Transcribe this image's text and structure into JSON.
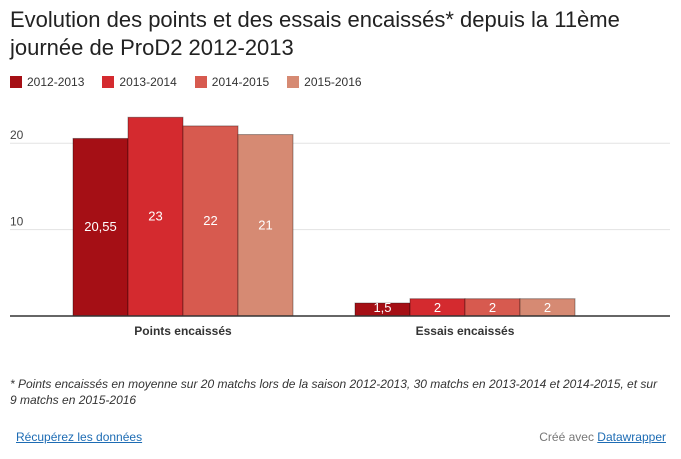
{
  "title": "Evolution des points et des essais encaissés* depuis la 11ème journée de ProD2 2012-2013",
  "footnote": "* Points encaissés en moyenne sur 20 matchs lors de la saison 2012-2013, 30 matchs en 2013-2014 et 2014-2015, et sur 9 matchs en 2015-2016",
  "footer": {
    "data_link": "Récupérez les données",
    "credit_prefix": "Créé avec",
    "credit_link": "Datawrapper"
  },
  "chart_data": {
    "type": "bar",
    "categories": [
      "Points encaissés",
      "Essais encaissés"
    ],
    "series": [
      {
        "name": "2012-2013",
        "values": [
          20.55,
          1.5
        ],
        "labels": [
          "20,55",
          "1,5"
        ],
        "color": "#a50f15"
      },
      {
        "name": "2013-2014",
        "values": [
          23,
          2
        ],
        "labels": [
          "23",
          "2"
        ],
        "color": "#d42a2f"
      },
      {
        "name": "2014-2015",
        "values": [
          22,
          2
        ],
        "labels": [
          "22",
          "2"
        ],
        "color": "#d75a4f"
      },
      {
        "name": "2015-2016",
        "values": [
          21,
          2
        ],
        "labels": [
          "21",
          "2"
        ],
        "color": "#d68a73"
      }
    ],
    "yticks": [
      10,
      20
    ],
    "ylim": [
      0,
      25
    ],
    "grid": true,
    "legend_position": "top-left"
  }
}
